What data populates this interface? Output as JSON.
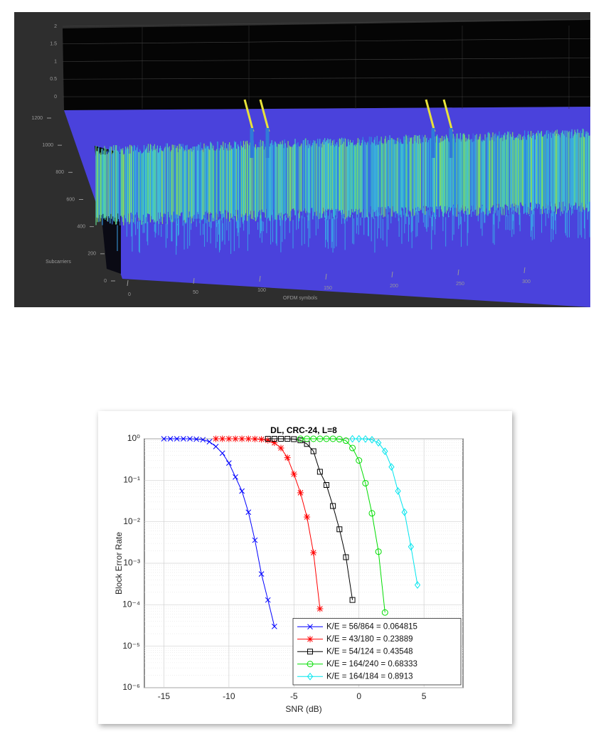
{
  "chart_data": [
    {
      "type": "surface",
      "zlim": [
        0,
        2
      ],
      "zticks": [
        0,
        0.5,
        1,
        1.5,
        2
      ],
      "ylabel": "Subcarriers",
      "ylim": [
        0,
        1200
      ],
      "yticks": [
        0,
        200,
        400,
        600,
        800,
        1000,
        1200
      ],
      "xlabel": "OFDM symbols",
      "xlim": [
        0,
        300
      ],
      "xticks": [
        0,
        50,
        100,
        150,
        200,
        250,
        300
      ]
    },
    {
      "type": "line",
      "title": "DL, CRC-24, L=8",
      "xlabel": "SNR (dB)",
      "ylabel": "Block Error Rate",
      "xlim": [
        -16.5,
        8
      ],
      "xticks": [
        -15,
        -10,
        -5,
        0,
        5
      ],
      "ylim": [
        1e-06,
        1
      ],
      "yscale": "log",
      "yticks": [
        {
          "value": 1,
          "label": "10⁰"
        },
        {
          "value": 0.1,
          "label": "10⁻¹"
        },
        {
          "value": 0.01,
          "label": "10⁻²"
        },
        {
          "value": 0.001,
          "label": "10⁻³"
        },
        {
          "value": 0.0001,
          "label": "10⁻⁴"
        },
        {
          "value": 1e-05,
          "label": "10⁻⁵"
        },
        {
          "value": 1e-06,
          "label": "10⁻⁶"
        }
      ],
      "grid": true,
      "legend": "lower right",
      "series": [
        {
          "name": "K/E = 56/864 = 0.064815",
          "color": "#0000ff",
          "marker": "x",
          "x": [
            -15,
            -14.5,
            -14,
            -13.5,
            -13,
            -12.5,
            -12,
            -11.5,
            -11,
            -10.5,
            -10,
            -9.5,
            -9,
            -8.5,
            -8,
            -7.5,
            -7,
            -6.5
          ],
          "values": [
            1,
            1,
            1,
            1,
            1,
            0.98,
            0.95,
            0.85,
            0.65,
            0.45,
            0.26,
            0.12,
            0.055,
            0.017,
            0.0036,
            0.00055,
            0.00013,
            3e-05
          ]
        },
        {
          "name": "K/E = 43/180 = 0.23889",
          "color": "#ff0000",
          "marker": "star",
          "x": [
            -11,
            -10.5,
            -10,
            -9.5,
            -9,
            -8.5,
            -8,
            -7.5,
            -7,
            -6.5,
            -6,
            -5.5,
            -5,
            -4.5,
            -4,
            -3.5,
            -3
          ],
          "values": [
            1,
            1,
            1,
            1,
            1,
            1,
            0.99,
            0.97,
            0.92,
            0.8,
            0.6,
            0.35,
            0.14,
            0.05,
            0.013,
            0.0018,
            8e-05
          ]
        },
        {
          "name": "K/E = 54/124 = 0.43548",
          "color": "#000000",
          "marker": "square",
          "x": [
            -7,
            -6.5,
            -6,
            -5.5,
            -5,
            -4.5,
            -4,
            -3.5,
            -3,
            -2.5,
            -2,
            -1.5,
            -1,
            -0.5
          ],
          "values": [
            1,
            1,
            1,
            1,
            0.98,
            0.92,
            0.75,
            0.5,
            0.16,
            0.077,
            0.024,
            0.0066,
            0.0014,
            0.00013
          ]
        },
        {
          "name": "K/E = 164/240 = 0.68333",
          "color": "#00dd00",
          "marker": "circle",
          "x": [
            -4.5,
            -4,
            -3.5,
            -3,
            -2.5,
            -2,
            -1.5,
            -1,
            -0.5,
            0,
            0.5,
            1,
            1.5,
            2
          ],
          "values": [
            1,
            1,
            1,
            1,
            1,
            1,
            0.98,
            0.9,
            0.6,
            0.3,
            0.085,
            0.016,
            0.0019,
            6.5e-05
          ]
        },
        {
          "name": "K/E = 164/184 = 0.8913",
          "color": "#00e5ee",
          "marker": "diamond",
          "x": [
            -0.5,
            0,
            0.5,
            1,
            1.5,
            2,
            2.5,
            3,
            3.5,
            4,
            4.5
          ],
          "values": [
            1,
            1,
            0.99,
            0.95,
            0.8,
            0.5,
            0.21,
            0.055,
            0.017,
            0.0025,
            0.0003
          ]
        }
      ]
    }
  ]
}
